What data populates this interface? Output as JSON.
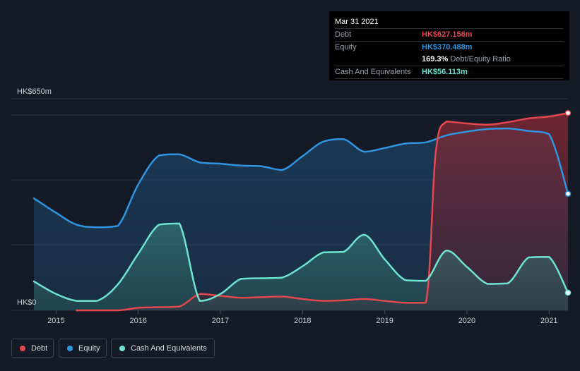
{
  "colors": {
    "background": "#151b26",
    "debt": "#e4474e",
    "equity": "#2f94e1",
    "cash": "#6fe3d2",
    "grid": "#2c3340",
    "axis_text": "#c9ced6"
  },
  "tooltip": {
    "date": "Mar 31 2021",
    "rows": [
      {
        "label": "Debt",
        "value": "HK$627.156m"
      },
      {
        "label": "Equity",
        "value": "HK$370.488m"
      },
      {
        "ratio_value": "169.3%",
        "ratio_label": "Debt/Equity Ratio"
      },
      {
        "label": "Cash And Equivalents",
        "value": "HK$56.113m"
      }
    ]
  },
  "legend": [
    {
      "key": "debt",
      "label": "Debt"
    },
    {
      "key": "equity",
      "label": "Equity"
    },
    {
      "key": "cash",
      "label": "Cash And Equivalents"
    }
  ],
  "chart_data": {
    "type": "area",
    "y_top_label": "HK$650m",
    "y_bottom_label": "HK$0",
    "ylim": [
      0,
      650
    ],
    "xlim": [
      2014.73,
      2021.23
    ],
    "x_ticks": [
      2015,
      2016,
      2017,
      2018,
      2019,
      2020,
      2021
    ],
    "x_tick_labels": [
      "2015",
      "2016",
      "2017",
      "2018",
      "2019",
      "2020",
      "2021"
    ],
    "grid": true,
    "series": [
      {
        "name": "Debt",
        "key": "debt",
        "points": [
          [
            2015.25,
            0
          ],
          [
            2015.75,
            0
          ],
          [
            2016.0,
            8
          ],
          [
            2016.25,
            10
          ],
          [
            2016.5,
            12
          ],
          [
            2016.75,
            52
          ],
          [
            2017.0,
            46
          ],
          [
            2017.25,
            40
          ],
          [
            2017.5,
            42
          ],
          [
            2017.75,
            44
          ],
          [
            2018.0,
            36
          ],
          [
            2018.25,
            30
          ],
          [
            2018.5,
            32
          ],
          [
            2018.75,
            36
          ],
          [
            2019.0,
            30
          ],
          [
            2019.25,
            24
          ],
          [
            2019.5,
            24
          ],
          [
            2019.62,
            500
          ],
          [
            2019.75,
            600
          ],
          [
            2020.0,
            594
          ],
          [
            2020.25,
            590
          ],
          [
            2020.5,
            598
          ],
          [
            2020.75,
            610
          ],
          [
            2021.0,
            616
          ],
          [
            2021.23,
            627.156
          ]
        ]
      },
      {
        "name": "Equity",
        "key": "equity",
        "points": [
          [
            2014.73,
            356
          ],
          [
            2015.0,
            310
          ],
          [
            2015.25,
            272
          ],
          [
            2015.5,
            264
          ],
          [
            2015.75,
            268
          ],
          [
            2016.0,
            400
          ],
          [
            2016.25,
            492
          ],
          [
            2016.5,
            496
          ],
          [
            2016.75,
            470
          ],
          [
            2017.0,
            466
          ],
          [
            2017.25,
            460
          ],
          [
            2017.5,
            458
          ],
          [
            2017.75,
            446
          ],
          [
            2018.0,
            490
          ],
          [
            2018.25,
            536
          ],
          [
            2018.5,
            544
          ],
          [
            2018.75,
            504
          ],
          [
            2019.0,
            516
          ],
          [
            2019.25,
            530
          ],
          [
            2019.5,
            534
          ],
          [
            2019.75,
            556
          ],
          [
            2020.0,
            568
          ],
          [
            2020.25,
            576
          ],
          [
            2020.5,
            578
          ],
          [
            2020.75,
            570
          ],
          [
            2021.0,
            560
          ],
          [
            2021.23,
            370.488
          ]
        ]
      },
      {
        "name": "Cash And Equivalents",
        "key": "cash",
        "points": [
          [
            2014.73,
            92
          ],
          [
            2015.0,
            52
          ],
          [
            2015.25,
            30
          ],
          [
            2015.5,
            30
          ],
          [
            2015.75,
            82
          ],
          [
            2016.0,
            180
          ],
          [
            2016.25,
            272
          ],
          [
            2016.5,
            276
          ],
          [
            2016.75,
            30
          ],
          [
            2017.0,
            52
          ],
          [
            2017.25,
            100
          ],
          [
            2017.5,
            102
          ],
          [
            2017.75,
            104
          ],
          [
            2018.0,
            140
          ],
          [
            2018.25,
            184
          ],
          [
            2018.5,
            186
          ],
          [
            2018.75,
            240
          ],
          [
            2019.0,
            162
          ],
          [
            2019.25,
            96
          ],
          [
            2019.5,
            94
          ],
          [
            2019.75,
            190
          ],
          [
            2020.0,
            138
          ],
          [
            2020.25,
            84
          ],
          [
            2020.5,
            86
          ],
          [
            2020.75,
            168
          ],
          [
            2021.0,
            170
          ],
          [
            2021.23,
            56.113
          ]
        ]
      }
    ]
  }
}
